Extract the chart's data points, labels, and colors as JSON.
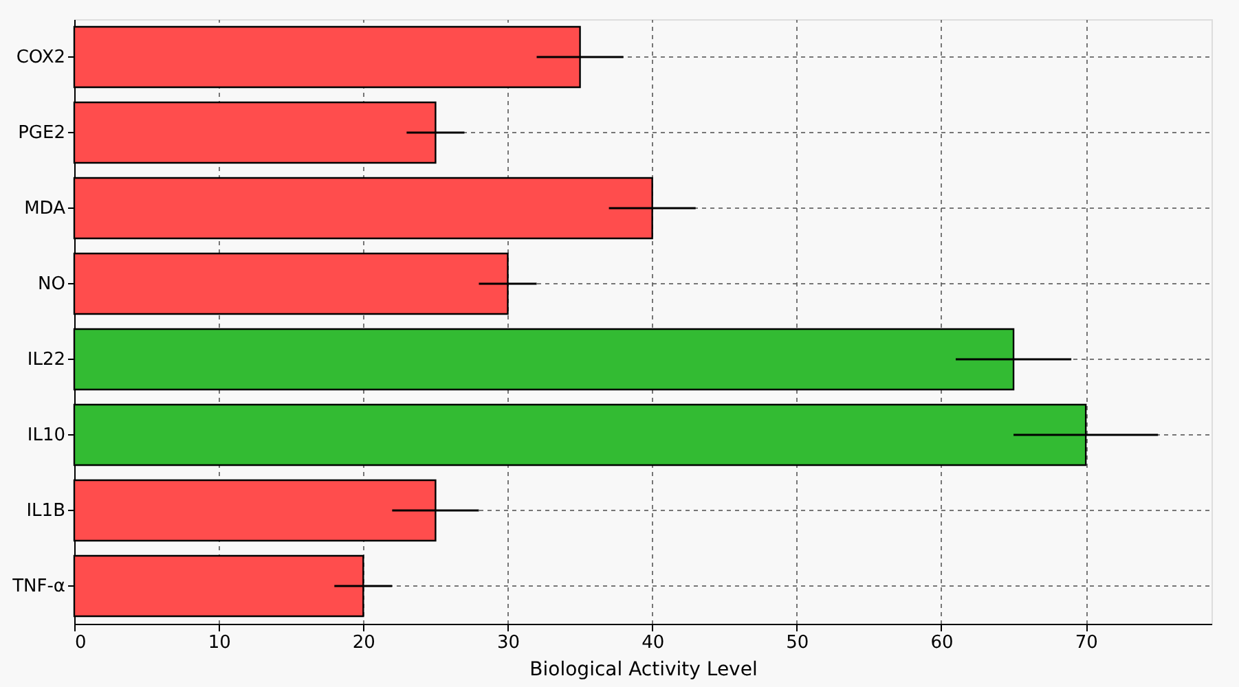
{
  "chart_data": {
    "type": "bar",
    "orientation": "horizontal",
    "xlabel": "Biological Activity Level",
    "categories": [
      "COX2",
      "PGE2",
      "MDA",
      "NO",
      "IL22",
      "IL10",
      "IL1B",
      "TNF-α"
    ],
    "values": [
      35,
      25,
      40,
      30,
      65,
      70,
      25,
      20
    ],
    "errors": [
      3,
      2,
      3,
      2,
      4,
      5,
      3,
      2
    ],
    "colors": [
      "#ff4d4d",
      "#ff4d4d",
      "#ff4d4d",
      "#ff4d4d",
      "#33bb33",
      "#33bb33",
      "#ff4d4d",
      "#ff4d4d"
    ],
    "xlim": [
      0,
      78.7
    ],
    "xticks": [
      0,
      10,
      20,
      30,
      40,
      50,
      60,
      70
    ],
    "grid": true
  }
}
